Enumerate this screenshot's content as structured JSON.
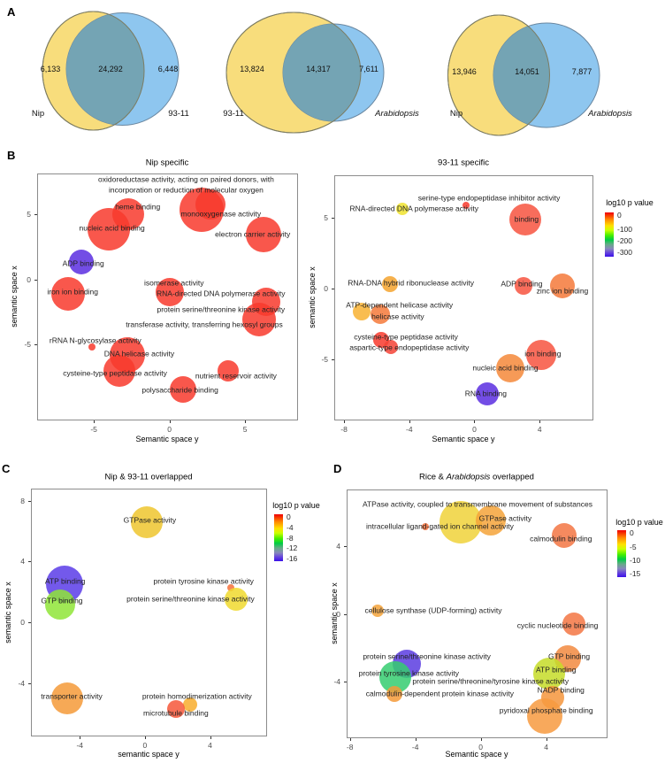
{
  "figure": {
    "panel_letters": {
      "a": "A",
      "b": "B",
      "c": "C",
      "d": "D"
    }
  },
  "venn": {
    "fill_left": "#f8dd7c",
    "fill_right": "#8ec6ef",
    "fill_overlap": "#74a4b4",
    "diagrams": [
      {
        "left_label": "Nip",
        "right_label": "93-11",
        "left_value": "6,133",
        "overlap_value": "24,292",
        "right_value": "6,448"
      },
      {
        "left_label": "93-11",
        "right_label": "Arabidopsis",
        "left_value": "13,824",
        "overlap_value": "14,317",
        "right_value": "7,611"
      },
      {
        "left_label": "Nip",
        "right_label": "Arabidopsis",
        "left_value": "13,946",
        "overlap_value": "14,051",
        "right_value": "7,877"
      }
    ]
  },
  "chart_data": [
    {
      "type": "scatter",
      "title": "Nip specific",
      "xlabel": "Semantic space y",
      "ylabel": "semantic space x",
      "xlim": [
        -8.75,
        8.5
      ],
      "ylim": [
        -10.8,
        8.1
      ],
      "xticks": [
        -5,
        0,
        5
      ],
      "yticks": [
        5,
        0,
        -5
      ],
      "legend": null,
      "points": [
        {
          "term": "monooxygenase activity",
          "x": 2.1,
          "y": 5.3,
          "r": 25,
          "color": "#f8392d"
        },
        {
          "term": "oxidoreductase activity, acting on paired donors, with incorporation or reduction of molecular oxygen",
          "x": 2.7,
          "y": 5.7,
          "r": 17,
          "color": "#f8392d"
        },
        {
          "term": "heme binding",
          "x": -2.7,
          "y": 5.0,
          "r": 18,
          "color": "#f8392d"
        },
        {
          "term": "nucleic acid binding",
          "x": -4.0,
          "y": 3.8,
          "r": 24,
          "color": "#f8392d"
        },
        {
          "term": "electron carrier activity",
          "x": 6.2,
          "y": 3.4,
          "r": 20,
          "color": "#f8392d"
        },
        {
          "term": "ADP binding",
          "x": -5.8,
          "y": 1.3,
          "r": 14,
          "color": "#5a2ee0"
        },
        {
          "term": "iron ion binding",
          "x": -6.7,
          "y": -1.1,
          "r": 19,
          "color": "#f8392d"
        },
        {
          "term": "isomerase activity",
          "x": 0.0,
          "y": -1.0,
          "r": 16,
          "color": "#f8392d"
        },
        {
          "term": "RNA-directed DNA polymerase activity",
          "x": 6.4,
          "y": -1.7,
          "r": 16,
          "color": "#f8392d"
        },
        {
          "term": "protein serine/threonine kinase activity",
          "x": 5.9,
          "y": -3.1,
          "r": 19,
          "color": "#f8392d"
        },
        {
          "term": "rRNA N-glycosylase activity",
          "x": -5.1,
          "y": -5.2,
          "r": 4,
          "color": "#f8392d"
        },
        {
          "term": "DNA helicase activity",
          "x": -2.8,
          "y": -5.8,
          "r": 20,
          "color": "#f8392d"
        },
        {
          "term": "cysteine-type peptidase activity",
          "x": -3.3,
          "y": -7.0,
          "r": 18,
          "color": "#f8392d"
        },
        {
          "term": "nutrient reservoir activity",
          "x": 3.9,
          "y": -7.0,
          "r": 12,
          "color": "#f8392d"
        },
        {
          "term": "polysaccharide binding",
          "x": 0.9,
          "y": -8.4,
          "r": 15,
          "color": "#f8392d"
        }
      ],
      "labels": [
        {
          "text": "oxidoreductase activity, acting on paired donors, with",
          "x": 1.1,
          "y": 7.6
        },
        {
          "text": "incorporation or reduction of molecular oxygen",
          "x": 1.1,
          "y": 6.8
        },
        {
          "text": "heme binding",
          "x": -2.1,
          "y": 5.5
        },
        {
          "text": "monooxygenase activity",
          "x": 3.4,
          "y": 5.0
        },
        {
          "text": "nucleic acid binding",
          "x": -3.8,
          "y": 3.9
        },
        {
          "text": "electron carrier activity",
          "x": 5.5,
          "y": 3.4
        },
        {
          "text": "ADP binding",
          "x": -5.7,
          "y": 1.2
        },
        {
          "text": "isomerase activity",
          "x": 0.3,
          "y": -0.3
        },
        {
          "text": "iron ion binding",
          "x": -6.4,
          "y": -1.0
        },
        {
          "text": "RNA-directed DNA polymerase activity",
          "x": 3.4,
          "y": -1.1
        },
        {
          "text": "protein serine/threonine kinase activity",
          "x": 3.4,
          "y": -2.3
        },
        {
          "text": "transferase activity, transferring hexosyl groups",
          "x": 2.3,
          "y": -3.5
        },
        {
          "text": "rRNA N-glycosylase activity",
          "x": -4.9,
          "y": -4.7
        },
        {
          "text": "DNA helicase activity",
          "x": -2.0,
          "y": -5.7
        },
        {
          "text": "cysteine-type peptidase activity",
          "x": -3.6,
          "y": -7.2
        },
        {
          "text": "nutrient reservoir activity",
          "x": 4.4,
          "y": -7.4
        },
        {
          "text": "polysaccharide binding",
          "x": 0.7,
          "y": -8.5
        }
      ]
    },
    {
      "type": "scatter",
      "title": "93-11 specific",
      "xlabel": "Semantic space y",
      "ylabel": "semantic space x",
      "xlim": [
        -8.6,
        7.3
      ],
      "ylim": [
        -9.3,
        8.0
      ],
      "xticks": [
        -8,
        -4,
        0,
        4
      ],
      "yticks": [
        5,
        0,
        -5
      ],
      "legend": {
        "title": "log10 p value",
        "ticks": [
          "0",
          "-100",
          "-200",
          "-300"
        ]
      },
      "points": [
        {
          "term": "serine-type endopeptidase inhibitor activity",
          "x": -0.5,
          "y": 5.9,
          "r": 4,
          "color": "#f8392d"
        },
        {
          "term": "RNA-directed DNA polymerase activity",
          "x": -4.4,
          "y": 5.6,
          "r": 7,
          "color": "#f0e32e"
        },
        {
          "term": "binding",
          "x": 3.1,
          "y": 4.9,
          "r": 18,
          "color": "#f75440"
        },
        {
          "term": "RNA-DNA hybrid ribonuclease activity",
          "x": -5.2,
          "y": 0.3,
          "r": 9,
          "color": "#f5a32e"
        },
        {
          "term": "ADP binding",
          "x": 3.0,
          "y": 0.2,
          "r": 10,
          "color": "#f75440"
        },
        {
          "term": "zinc ion binding",
          "x": 5.4,
          "y": 0.2,
          "r": 14,
          "color": "#f5793a"
        },
        {
          "term": "ATP-dependent helicase activity",
          "x": -6.9,
          "y": -1.6,
          "r": 10,
          "color": "#f8b231"
        },
        {
          "term": "helicase activity",
          "x": -5.8,
          "y": -1.8,
          "r": 11,
          "color": "#f5793a"
        },
        {
          "term": "cysteine-type peptidase activity",
          "x": -5.7,
          "y": -3.6,
          "r": 9,
          "color": "#f8392d"
        },
        {
          "term": "aspartic-type endopeptidase activity",
          "x": -5.1,
          "y": -4.1,
          "r": 8,
          "color": "#f44336"
        },
        {
          "term": "ion binding",
          "x": 4.1,
          "y": -4.7,
          "r": 17,
          "color": "#f75440"
        },
        {
          "term": "nucleic acid binding",
          "x": 2.2,
          "y": -5.6,
          "r": 16,
          "color": "#f5883a"
        },
        {
          "term": "RNA binding",
          "x": 0.8,
          "y": -7.4,
          "r": 13,
          "color": "#5a2ee0"
        }
      ],
      "labels": [
        {
          "text": "serine-type endopeptidase inhibitor activity",
          "x": 0.9,
          "y": 6.4
        },
        {
          "text": "RNA-directed DNA polymerase activity",
          "x": -3.7,
          "y": 5.6
        },
        {
          "text": "binding",
          "x": 3.2,
          "y": 4.9
        },
        {
          "text": "RNA-DNA hybrid ribonuclease activity",
          "x": -3.9,
          "y": 0.4
        },
        {
          "text": "ADP binding",
          "x": 2.9,
          "y": 0.3
        },
        {
          "text": "zinc ion binding",
          "x": 5.4,
          "y": -0.2
        },
        {
          "text": "ATP-dependent helicase activity",
          "x": -4.6,
          "y": -1.2
        },
        {
          "text": "helicase activity",
          "x": -4.7,
          "y": -2.0
        },
        {
          "text": "cysteine-type peptidase activity",
          "x": -4.2,
          "y": -3.4
        },
        {
          "text": "aspartic-type endopeptidase activity",
          "x": -4.0,
          "y": -4.2
        },
        {
          "text": "ion binding",
          "x": 4.2,
          "y": -4.6
        },
        {
          "text": "nucleic acid binding",
          "x": 1.9,
          "y": -5.6
        },
        {
          "text": "RNA binding",
          "x": 0.7,
          "y": -7.4
        }
      ]
    },
    {
      "type": "scatter",
      "title": "Nip & 93-11 overlapped",
      "xlabel": "semantic space y",
      "ylabel": "semantic space x",
      "xlim": [
        -7.0,
        7.5
      ],
      "ylim": [
        -7.5,
        8.8
      ],
      "xticks": [
        -4,
        0,
        4
      ],
      "yticks": [
        8,
        4,
        0,
        -4
      ],
      "legend": {
        "title": "log10 p value",
        "ticks": [
          "0",
          "-4",
          "-8",
          "-12",
          "-16"
        ]
      },
      "points": [
        {
          "term": "GTPase activity",
          "x": 0.1,
          "y": 6.6,
          "r": 18,
          "color": "#efc52e"
        },
        {
          "term": "ATP binding",
          "x": -4.95,
          "y": 2.5,
          "r": 21,
          "color": "#5b3ce8"
        },
        {
          "term": "GTP binding",
          "x": -5.2,
          "y": 1.2,
          "r": 17,
          "color": "#8fe537"
        },
        {
          "term": "protein tyrosine kinase activity",
          "x": 5.3,
          "y": 2.3,
          "r": 4,
          "color": "#f6703a"
        },
        {
          "term": "protein serine/threonine kinase activity",
          "x": 5.6,
          "y": 1.5,
          "r": 13,
          "color": "#f0d92e"
        },
        {
          "term": "transporter activity",
          "x": -4.8,
          "y": -5.0,
          "r": 18,
          "color": "#f59a38"
        },
        {
          "term": "protein homodimerization activity",
          "x": 2.8,
          "y": -5.4,
          "r": 8,
          "color": "#f8ad2d"
        },
        {
          "term": "microtubule binding",
          "x": 1.9,
          "y": -5.7,
          "r": 10,
          "color": "#f6573a"
        }
      ],
      "labels": [
        {
          "text": "GTPase activity",
          "x": 0.3,
          "y": 6.7
        },
        {
          "text": "ATP binding",
          "x": -4.9,
          "y": 2.7
        },
        {
          "text": "GTP binding",
          "x": -5.1,
          "y": 1.4
        },
        {
          "text": "protein tyrosine kinase activity",
          "x": 3.6,
          "y": 2.7
        },
        {
          "text": "protein serine/threonine kinase activity",
          "x": 2.8,
          "y": 1.5
        },
        {
          "text": "transporter activity",
          "x": -4.5,
          "y": -4.9
        },
        {
          "text": "protein homodimerization activity",
          "x": 3.2,
          "y": -4.9
        },
        {
          "text": "microtubule binding",
          "x": 1.9,
          "y": -6.0
        }
      ]
    },
    {
      "type": "scatter",
      "title": "Rice & Arabidopsis overlapped",
      "title_prefix": "Rice & ",
      "title_italic": "Arabidopsis",
      "title_suffix": " overlapped",
      "xlabel": "Semantic space y",
      "ylabel": "semantic space x",
      "xlim": [
        -8.2,
        7.75
      ],
      "ylim": [
        -7.3,
        7.3
      ],
      "xticks": [
        -8,
        -4,
        0,
        4
      ],
      "yticks": [
        4,
        0,
        -4
      ],
      "legend": {
        "title": "log10 p value",
        "ticks": [
          "0",
          "-5",
          "-10",
          "-15"
        ]
      },
      "points": [
        {
          "term": "ATPase activity, coupled to transmembrane movement of substances",
          "x": -1.2,
          "y": 5.4,
          "r": 24,
          "color": "#f0d239"
        },
        {
          "term": "GTPase activity",
          "x": 0.6,
          "y": 5.5,
          "r": 17,
          "color": "#f5a33a"
        },
        {
          "term": "intracellular ligand-gated ion channel activity",
          "x": -3.4,
          "y": 5.1,
          "r": 4,
          "color": "#f6703a"
        },
        {
          "term": "calmodulin binding",
          "x": 5.1,
          "y": 4.6,
          "r": 14,
          "color": "#f37543"
        },
        {
          "term": "cellulose synthase (UDP-forming) activity",
          "x": -6.3,
          "y": 0.2,
          "r": 7,
          "color": "#f5a33a"
        },
        {
          "term": "cyclic nucleotide binding",
          "x": 5.7,
          "y": -0.6,
          "r": 13,
          "color": "#f37543"
        },
        {
          "term": "protein serine/threonine kinase activity",
          "x": -4.5,
          "y": -2.95,
          "r": 16,
          "color": "#5b3ce0"
        },
        {
          "term": "protein tyrosine kinase activity",
          "x": -5.2,
          "y": -3.7,
          "r": 18,
          "color": "#35cc70"
        },
        {
          "term": "calmodulin-dependent protein kinase activity",
          "x": -5.3,
          "y": -4.7,
          "r": 9,
          "color": "#f59a38"
        },
        {
          "term": "GTP binding",
          "x": 5.3,
          "y": -2.6,
          "r": 15,
          "color": "#f28a40"
        },
        {
          "term": "ATP binding",
          "x": 4.2,
          "y": -3.5,
          "r": 18,
          "color": "#c6dc28"
        },
        {
          "term": "NADP binding",
          "x": 4.4,
          "y": -4.9,
          "r": 13,
          "color": "#f5953c"
        },
        {
          "term": "pyridoxal phosphate binding",
          "x": 3.9,
          "y": -6.0,
          "r": 20,
          "color": "#f79a40"
        }
      ],
      "labels": [
        {
          "text": "ATPase activity, coupled to transmembrane movement of substances",
          "x": -0.2,
          "y": 6.4
        },
        {
          "text": "GTPase activity",
          "x": 1.5,
          "y": 5.6
        },
        {
          "text": "intracellular ligand-gated ion channel activity",
          "x": -2.5,
          "y": 5.1
        },
        {
          "text": "calmodulin binding",
          "x": 4.9,
          "y": 4.4
        },
        {
          "text": "cellulose synthase (UDP-forming) activity",
          "x": -2.9,
          "y": 0.2
        },
        {
          "text": "cyclic nucleotide binding",
          "x": 4.7,
          "y": -0.7
        },
        {
          "text": "protein serine/threonine kinase activity",
          "x": -3.3,
          "y": -2.5
        },
        {
          "text": "protein tyrosine kinase activity",
          "x": -4.4,
          "y": -3.5
        },
        {
          "text": "protein serine/threonine/tyrosine kinase activity",
          "x": 0.6,
          "y": -4.0
        },
        {
          "text": "calmodulin-dependent protein kinase activity",
          "x": -2.5,
          "y": -4.7
        },
        {
          "text": "GTP binding",
          "x": 5.4,
          "y": -2.5
        },
        {
          "text": "ATP binding",
          "x": 4.6,
          "y": -3.3
        },
        {
          "text": "NADP binding",
          "x": 4.9,
          "y": -4.5
        },
        {
          "text": "pyridoxal phosphate binding",
          "x": 4.0,
          "y": -5.7
        }
      ]
    }
  ]
}
